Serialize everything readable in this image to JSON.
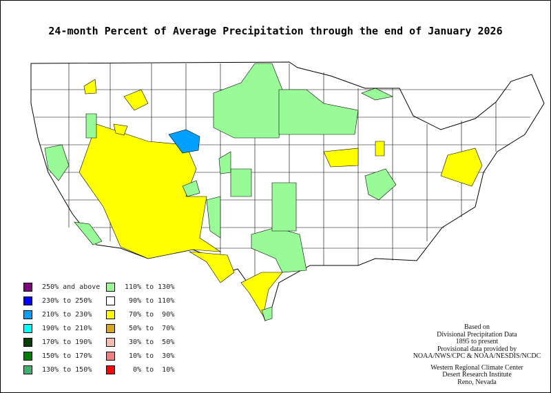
{
  "title": "24-month Percent of Average Precipitation through the end of January 2026",
  "legend": [
    {
      "label": "250% and above",
      "color": "#800080"
    },
    {
      "label": "230% to 250%",
      "color": "#0000ff"
    },
    {
      "label": "210% to 230%",
      "color": "#00a0ff"
    },
    {
      "label": "190% to 210%",
      "color": "#00ffff"
    },
    {
      "label": "170% to 190%",
      "color": "#004000"
    },
    {
      "label": "150% to 170%",
      "color": "#008000"
    },
    {
      "label": "130% to 150%",
      "color": "#3cb371"
    },
    {
      "label": "110% to 130%",
      "color": "#98fb98"
    },
    {
      "label": " 90% to 110%",
      "color": "#ffffff"
    },
    {
      "label": " 70% to  90%",
      "color": "#ffff00"
    },
    {
      "label": " 50% to  70%",
      "color": "#daa520"
    },
    {
      "label": " 30% to  50%",
      "color": "#f4bfb0"
    },
    {
      "label": " 10% to  30%",
      "color": "#f08080"
    },
    {
      "label": "  0% to  10%",
      "color": "#ff0000"
    }
  ],
  "credits": [
    "Based on",
    "Divisional Precipitation Data",
    "1895 to present",
    "Provisional data provided by",
    "NOAA/NWS/CPC & NOAA/NESDIS/NCDC",
    "",
    "Western Regional Climate Center",
    "Desert Research Institute",
    "Reno, Nevada"
  ]
}
